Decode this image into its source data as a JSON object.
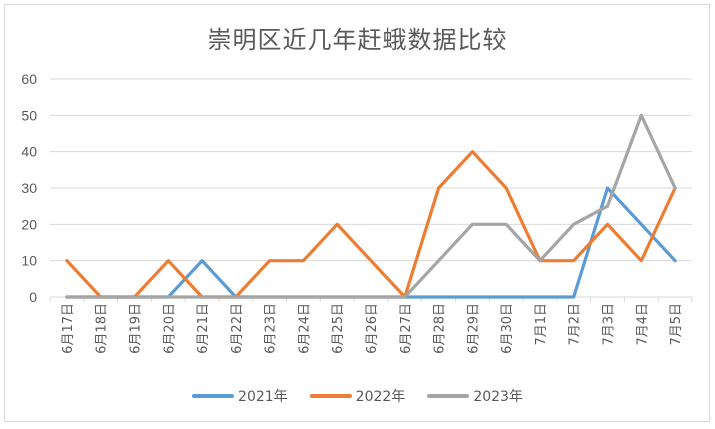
{
  "chart_data": {
    "type": "line",
    "title": "崇明区近几年赶蛾数据比较",
    "xlabel": "",
    "ylabel": "",
    "ylim": [
      0,
      60
    ],
    "yticks": [
      0,
      10,
      20,
      30,
      40,
      50,
      60
    ],
    "grid": true,
    "legend_position": "bottom",
    "categories": [
      "6月17日",
      "6月18日",
      "6月19日",
      "6月20日",
      "6月21日",
      "6月22日",
      "6月23日",
      "6月24日",
      "6月25日",
      "6月26日",
      "6月27日",
      "6月28日",
      "6月29日",
      "6月30日",
      "7月1日",
      "7月2日",
      "7月3日",
      "7月4日",
      "7月5日"
    ],
    "series": [
      {
        "name": "2021年",
        "color": "#5B9BD5",
        "values": [
          0,
          0,
          0,
          0,
          10,
          0,
          0,
          0,
          0,
          0,
          0,
          0,
          0,
          0,
          0,
          0,
          30,
          20,
          10
        ]
      },
      {
        "name": "2022年",
        "color": "#ED7D31",
        "values": [
          10,
          0,
          0,
          10,
          0,
          0,
          10,
          10,
          20,
          10,
          0,
          30,
          40,
          30,
          10,
          10,
          20,
          10,
          30
        ]
      },
      {
        "name": "2023年",
        "color": "#A5A5A5",
        "values": [
          0,
          0,
          0,
          0,
          0,
          0,
          0,
          0,
          0,
          0,
          0,
          10,
          20,
          20,
          10,
          20,
          25,
          50,
          30
        ]
      }
    ]
  },
  "legend": {
    "items": [
      {
        "label": "2021年",
        "color": "#5B9BD5"
      },
      {
        "label": "2022年",
        "color": "#ED7D31"
      },
      {
        "label": "2023年",
        "color": "#A5A5A5"
      }
    ]
  }
}
